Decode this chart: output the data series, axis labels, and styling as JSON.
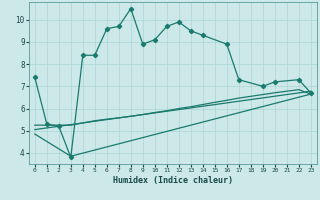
{
  "xlabel": "Humidex (Indice chaleur)",
  "bg_color": "#cce8e8",
  "grid_color": "#aad4d4",
  "line_color": "#1a7a6e",
  "xlim": [
    -0.5,
    23.5
  ],
  "ylim": [
    3.5,
    10.8
  ],
  "xticks": [
    0,
    1,
    2,
    3,
    4,
    5,
    6,
    7,
    8,
    9,
    10,
    11,
    12,
    13,
    14,
    15,
    16,
    17,
    18,
    19,
    20,
    21,
    22,
    23
  ],
  "yticks": [
    4,
    5,
    6,
    7,
    8,
    9,
    10
  ],
  "series1_x": [
    0,
    1,
    2,
    3,
    4,
    5,
    6,
    7,
    8,
    9,
    10,
    11,
    12,
    13,
    14,
    16,
    17,
    19,
    20,
    22,
    23
  ],
  "series1_y": [
    7.4,
    5.3,
    5.2,
    3.8,
    8.4,
    8.4,
    9.6,
    9.7,
    10.5,
    8.9,
    9.1,
    9.7,
    9.9,
    9.5,
    9.3,
    8.9,
    7.3,
    7.0,
    7.2,
    7.3,
    6.7
  ],
  "series2_x": [
    0,
    3,
    4,
    5,
    6,
    7,
    8,
    9,
    10,
    11,
    12,
    13,
    14,
    15,
    16,
    17,
    18,
    19,
    20,
    21,
    22,
    23
  ],
  "series2_y": [
    5.25,
    5.25,
    5.35,
    5.45,
    5.52,
    5.58,
    5.65,
    5.73,
    5.82,
    5.9,
    6.0,
    6.08,
    6.18,
    6.28,
    6.37,
    6.47,
    6.55,
    6.63,
    6.71,
    6.78,
    6.85,
    6.65
  ],
  "series3_x": [
    0,
    23
  ],
  "series3_y": [
    5.05,
    6.78
  ],
  "series4_x": [
    0,
    3,
    23
  ],
  "series4_y": [
    4.85,
    3.85,
    6.65
  ]
}
